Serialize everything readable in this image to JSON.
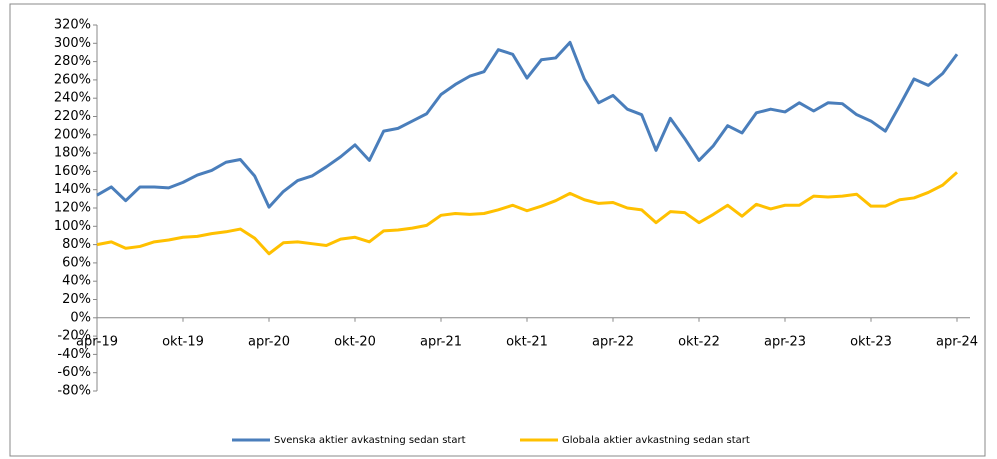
{
  "chart_data": {
    "type": "line",
    "categories": [
      "apr-19",
      null,
      null,
      null,
      null,
      null,
      "okt-19",
      null,
      null,
      null,
      null,
      null,
      "apr-20",
      null,
      null,
      null,
      null,
      null,
      "okt-20",
      null,
      null,
      null,
      null,
      null,
      "apr-21",
      null,
      null,
      null,
      null,
      null,
      "okt-21",
      null,
      null,
      null,
      null,
      null,
      "apr-22",
      null,
      null,
      null,
      null,
      null,
      "okt-22",
      null,
      null,
      null,
      null,
      null,
      "apr-23",
      null,
      null,
      null,
      null,
      null,
      "okt-23",
      null,
      null,
      null,
      null,
      null,
      "apr-24"
    ],
    "series": [
      {
        "name": "Svenska aktier avkastning sedan start",
        "color": "#4a7ebb",
        "values": [
          134,
          143,
          128,
          143,
          143,
          142,
          148,
          156,
          161,
          170,
          173,
          155,
          121,
          138,
          150,
          155,
          165,
          176,
          189,
          172,
          204,
          207,
          215,
          223,
          244,
          255,
          264,
          269,
          293,
          288,
          262,
          282,
          284,
          301,
          261,
          235,
          243,
          228,
          222,
          183,
          218,
          196,
          172,
          188,
          210,
          202,
          224,
          228,
          225,
          235,
          226,
          235,
          234,
          222,
          215,
          204,
          232,
          261,
          254,
          267,
          288
        ]
      },
      {
        "name": "Globala aktier avkastning sedan start",
        "color": "#ffc000",
        "values": [
          80,
          83,
          76,
          78,
          83,
          85,
          88,
          89,
          92,
          94,
          97,
          87,
          70,
          82,
          83,
          81,
          79,
          86,
          88,
          83,
          95,
          96,
          98,
          101,
          112,
          114,
          113,
          114,
          118,
          123,
          117,
          122,
          128,
          136,
          129,
          125,
          126,
          120,
          118,
          104,
          116,
          115,
          104,
          113,
          123,
          111,
          124,
          119,
          123,
          123,
          133,
          132,
          133,
          135,
          122,
          122,
          129,
          131,
          137,
          145,
          159
        ]
      }
    ],
    "ylim": [
      -80,
      320
    ],
    "yticks": [
      {
        "value": -80,
        "label": "-80%"
      },
      {
        "value": -60,
        "label": "-60%"
      },
      {
        "value": -40,
        "label": "-40%"
      },
      {
        "value": -20,
        "label": "-20%"
      },
      {
        "value": 0,
        "label": "0%"
      },
      {
        "value": 20,
        "label": "20%"
      },
      {
        "value": 40,
        "label": "40%"
      },
      {
        "value": 60,
        "label": "60%"
      },
      {
        "value": 80,
        "label": "80%"
      },
      {
        "value": 100,
        "label": "100%"
      },
      {
        "value": 120,
        "label": "120%"
      },
      {
        "value": 140,
        "label": "140%"
      },
      {
        "value": 160,
        "label": "160%"
      },
      {
        "value": 180,
        "label": "180%"
      },
      {
        "value": 200,
        "label": "200%"
      },
      {
        "value": 220,
        "label": "220%"
      },
      {
        "value": 240,
        "label": "240%"
      },
      {
        "value": 260,
        "label": "260%"
      },
      {
        "value": 280,
        "label": "280%"
      },
      {
        "value": 300,
        "label": "300%"
      },
      {
        "value": 320,
        "label": "320%"
      }
    ],
    "legend": "bottom"
  }
}
